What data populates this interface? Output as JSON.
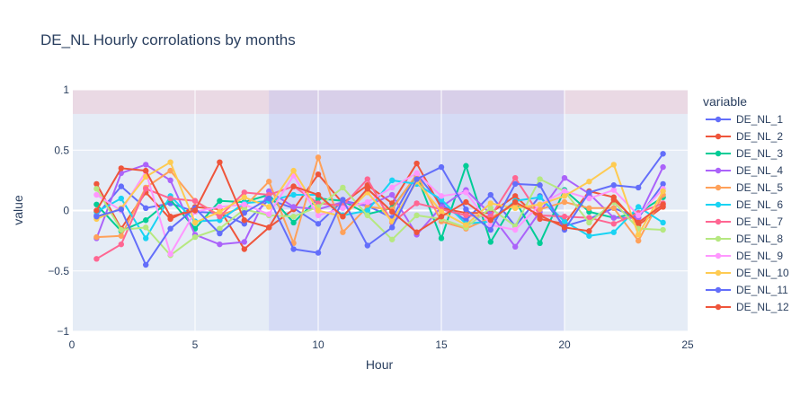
{
  "chart_data": {
    "type": "line",
    "title": "DE_NL Hourly corrolations by months",
    "xlabel": "Hour",
    "ylabel": "value",
    "xlim": [
      0,
      25
    ],
    "ylim": [
      -1,
      1
    ],
    "xticks": [
      0,
      5,
      10,
      15,
      20,
      25
    ],
    "xtick_labels": [
      "0",
      "5",
      "10",
      "15",
      "20",
      "25"
    ],
    "yticks": [
      -1,
      -0.5,
      0,
      0.5,
      1
    ],
    "ytick_labels": [
      "−1",
      "−0.5",
      "0",
      "0.5",
      "1"
    ],
    "grid": true,
    "legend_title": "variable",
    "legend_position": "right",
    "shapes": [
      {
        "kind": "hband",
        "y0": 0.8,
        "y1": 1.0,
        "color": "#f4b6c2",
        "opacity": 0.35
      },
      {
        "kind": "vband",
        "x0": 8,
        "x1": 20,
        "color": "#b6bdf4",
        "opacity": 0.35
      }
    ],
    "x": [
      1,
      2,
      3,
      4,
      5,
      6,
      7,
      8,
      9,
      10,
      11,
      12,
      13,
      14,
      15,
      16,
      17,
      18,
      19,
      20,
      21,
      22,
      23,
      24
    ],
    "series": [
      {
        "name": "DE_NL_1",
        "color": "#636efa",
        "values": [
          -0.04,
          0.2,
          0.02,
          0.06,
          -0.01,
          -0.02,
          -0.11,
          0.09,
          0.02,
          -0.11,
          0.08,
          0.04,
          -0.06,
          0.3,
          0.05,
          -0.08,
          0.13,
          -0.13,
          0.12,
          -0.13,
          -0.07,
          0.02,
          -0.06,
          0.22
        ]
      },
      {
        "name": "DE_NL_2",
        "color": "#ef553b",
        "values": [
          0.22,
          -0.15,
          0.15,
          -0.07,
          0.03,
          0.01,
          -0.32,
          -0.14,
          0.01,
          0.3,
          0.06,
          0.21,
          0.06,
          0.39,
          0.02,
          -0.02,
          -0.02,
          0.12,
          -0.07,
          -0.11,
          0.16,
          0.11,
          -0.12,
          0.03
        ]
      },
      {
        "name": "DE_NL_3",
        "color": "#00cc96",
        "values": [
          0.05,
          -0.17,
          -0.08,
          0.09,
          -0.15,
          0.08,
          0.07,
          0.13,
          -0.1,
          0.1,
          0.08,
          -0.03,
          0.02,
          0.29,
          -0.23,
          0.37,
          -0.26,
          0.08,
          -0.27,
          0.17,
          -0.01,
          -0.06,
          -0.02,
          0.11
        ]
      },
      {
        "name": "DE_NL_4",
        "color": "#ab63fa",
        "values": [
          -0.23,
          0.31,
          0.38,
          0.25,
          -0.2,
          -0.28,
          -0.26,
          0.16,
          0.03,
          0.01,
          0.07,
          0.04,
          0.13,
          -0.2,
          0.03,
          0.17,
          -0.03,
          -0.3,
          -0.01,
          0.27,
          0.14,
          -0.06,
          -0.06,
          0.36
        ]
      },
      {
        "name": "DE_NL_5",
        "color": "#ffa15a",
        "values": [
          -0.22,
          -0.21,
          0.19,
          0.33,
          0.08,
          -0.04,
          0.03,
          0.24,
          -0.27,
          0.44,
          -0.18,
          0.03,
          0.01,
          0.3,
          -0.09,
          -0.15,
          -0.06,
          0.05,
          0.01,
          0.07,
          0.02,
          0.02,
          -0.25,
          0.13
        ]
      },
      {
        "name": "DE_NL_6",
        "color": "#19d3f3",
        "values": [
          -0.01,
          0.1,
          -0.23,
          0.12,
          -0.09,
          -0.08,
          0.06,
          0.08,
          0.13,
          0.13,
          -0.04,
          0.0,
          0.25,
          0.22,
          0.09,
          -0.11,
          -0.09,
          0.08,
          0.11,
          -0.09,
          -0.21,
          -0.18,
          0.03,
          -0.1
        ]
      },
      {
        "name": "DE_NL_7",
        "color": "#ff6692",
        "values": [
          -0.4,
          -0.28,
          0.18,
          0.1,
          0.08,
          -0.05,
          0.15,
          0.13,
          0.2,
          0.06,
          0.04,
          0.26,
          -0.1,
          0.06,
          0.01,
          -0.04,
          -0.05,
          0.27,
          -0.04,
          -0.05,
          -0.06,
          -0.11,
          -0.02,
          0.06
        ]
      },
      {
        "name": "DE_NL_8",
        "color": "#b6e880",
        "values": [
          0.18,
          -0.16,
          -0.14,
          -0.37,
          -0.22,
          -0.15,
          0.01,
          -0.04,
          -0.05,
          0.03,
          0.19,
          -0.04,
          -0.24,
          -0.04,
          -0.07,
          -0.14,
          0.02,
          -0.13,
          0.26,
          0.16,
          -0.1,
          0.07,
          -0.15,
          -0.16
        ]
      },
      {
        "name": "DE_NL_9",
        "color": "#ff97ff",
        "values": [
          0.13,
          0.0,
          0.32,
          -0.36,
          -0.01,
          0.03,
          0.05,
          -0.03,
          0.29,
          -0.04,
          0.02,
          0.07,
          0.19,
          0.31,
          0.12,
          0.15,
          -0.12,
          -0.16,
          0.05,
          0.16,
          0.1,
          0.17,
          -0.04,
          0.18
        ]
      },
      {
        "name": "DE_NL_10",
        "color": "#fecb52",
        "values": [
          -0.07,
          0.02,
          0.28,
          0.4,
          -0.1,
          -0.01,
          0.11,
          0.03,
          0.33,
          0.0,
          -0.05,
          0.15,
          -0.09,
          0.24,
          -0.01,
          -0.12,
          0.06,
          0.02,
          0.05,
          0.12,
          0.24,
          0.38,
          -0.2,
          0.16
        ]
      },
      {
        "name": "DE_NL_11",
        "color": "#636efa",
        "values": [
          -0.05,
          0.01,
          -0.45,
          -0.15,
          0.02,
          -0.19,
          -0.02,
          0.1,
          -0.32,
          -0.35,
          0.09,
          -0.29,
          -0.14,
          0.26,
          0.36,
          0.01,
          -0.16,
          0.22,
          0.21,
          -0.16,
          0.15,
          0.21,
          0.19,
          0.47
        ]
      },
      {
        "name": "DE_NL_12",
        "color": "#ef553b",
        "values": [
          0.0,
          0.35,
          0.33,
          -0.05,
          0.0,
          0.4,
          -0.08,
          -0.14,
          0.2,
          0.13,
          -0.05,
          0.18,
          -0.01,
          -0.18,
          -0.05,
          0.07,
          -0.08,
          0.07,
          -0.04,
          -0.14,
          -0.17,
          0.09,
          -0.1,
          0.05
        ]
      }
    ]
  }
}
